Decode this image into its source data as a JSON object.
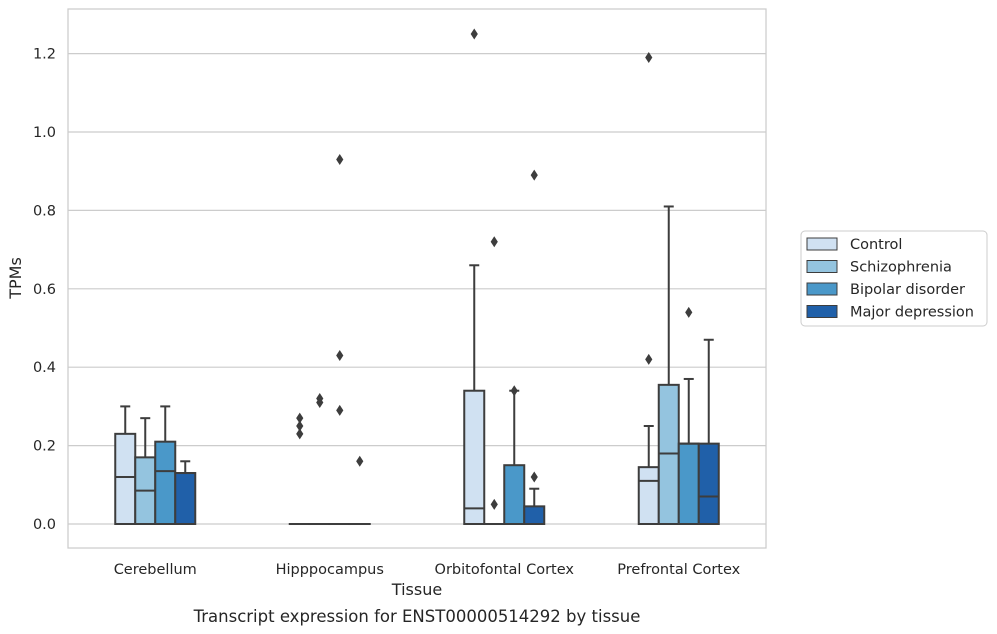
{
  "chart_data": {
    "type": "boxplot",
    "title": "Transcript expression for ENST00000514292 by tissue",
    "xlabel": "Tissue",
    "ylabel": "TPMs",
    "ylim": [
      -0.06,
      1.32
    ],
    "yticks": [
      0.0,
      0.2,
      0.4,
      0.6,
      0.8,
      1.0,
      1.2
    ],
    "ytick_labels": [
      "0.0",
      "0.2",
      "0.4",
      "0.6",
      "0.8",
      "1.0",
      "1.2"
    ],
    "grid": "horizontal",
    "legend_position": "right",
    "categories": [
      "Cerebellum",
      "Hipppocampus",
      "Orbitofontal Cortex",
      "Prefrontal Cortex"
    ],
    "series": [
      {
        "name": "Control",
        "color": "#d0e1f2",
        "boxes": [
          {
            "whislo": 0.0,
            "q1": 0.0,
            "med": 0.12,
            "q3": 0.23,
            "whishi": 0.3,
            "fliers": []
          },
          {
            "whislo": 0.0,
            "q1": 0.0,
            "med": 0.0,
            "q3": 0.0,
            "whishi": 0.0,
            "fliers": [
              0.23,
              0.25,
              0.27
            ]
          },
          {
            "whislo": 0.0,
            "q1": 0.0,
            "med": 0.04,
            "q3": 0.34,
            "whishi": 0.66,
            "fliers": [
              1.25
            ]
          },
          {
            "whislo": 0.0,
            "q1": 0.0,
            "med": 0.11,
            "q3": 0.145,
            "whishi": 0.25,
            "fliers": [
              0.42,
              1.19
            ]
          }
        ]
      },
      {
        "name": "Schizophrenia",
        "color": "#94c4df",
        "boxes": [
          {
            "whislo": 0.0,
            "q1": 0.0,
            "med": 0.085,
            "q3": 0.17,
            "whishi": 0.27,
            "fliers": []
          },
          {
            "whislo": 0.0,
            "q1": 0.0,
            "med": 0.0,
            "q3": 0.0,
            "whishi": 0.0,
            "fliers": [
              0.31,
              0.32
            ]
          },
          {
            "whislo": 0.0,
            "q1": 0.0,
            "med": 0.0,
            "q3": 0.0,
            "whishi": 0.0,
            "fliers": [
              0.05,
              0.72
            ]
          },
          {
            "whislo": 0.0,
            "q1": 0.0,
            "med": 0.18,
            "q3": 0.355,
            "whishi": 0.81,
            "fliers": []
          }
        ]
      },
      {
        "name": "Bipolar disorder",
        "color": "#4a98c9",
        "boxes": [
          {
            "whislo": 0.0,
            "q1": 0.0,
            "med": 0.135,
            "q3": 0.21,
            "whishi": 0.3,
            "fliers": []
          },
          {
            "whislo": 0.0,
            "q1": 0.0,
            "med": 0.0,
            "q3": 0.0,
            "whishi": 0.0,
            "fliers": [
              0.29,
              0.43,
              0.93
            ]
          },
          {
            "whislo": 0.0,
            "q1": 0.0,
            "med": 0.0,
            "q3": 0.15,
            "whishi": 0.34,
            "fliers": [
              0.34
            ]
          },
          {
            "whislo": 0.0,
            "q1": 0.0,
            "med": 0.205,
            "q3": 0.205,
            "whishi": 0.37,
            "fliers": [
              0.54
            ]
          }
        ]
      },
      {
        "name": "Major depression",
        "color": "#2060a9",
        "boxes": [
          {
            "whislo": 0.0,
            "q1": 0.0,
            "med": 0.13,
            "q3": 0.13,
            "whishi": 0.16,
            "fliers": []
          },
          {
            "whislo": 0.0,
            "q1": 0.0,
            "med": 0.0,
            "q3": 0.0,
            "whishi": 0.0,
            "fliers": [
              0.16
            ]
          },
          {
            "whislo": 0.0,
            "q1": 0.0,
            "med": 0.0,
            "q3": 0.045,
            "whishi": 0.09,
            "fliers": [
              0.12,
              0.89
            ]
          },
          {
            "whislo": 0.0,
            "q1": 0.0,
            "med": 0.07,
            "q3": 0.205,
            "whishi": 0.47,
            "fliers": []
          }
        ]
      }
    ]
  }
}
